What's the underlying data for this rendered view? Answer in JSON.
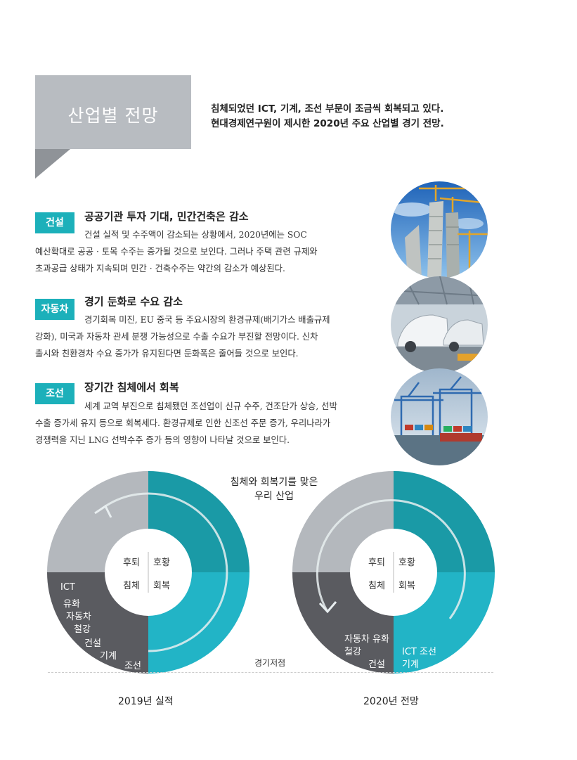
{
  "header": {
    "title": "산업별 전망",
    "intro_line1": "침체되었던 ICT, 기계, 조선 부문이 조금씩 회복되고 있다.",
    "intro_line2": "현대경제연구원이 제시한 2020년 주요 산업별 경기 전망."
  },
  "sections": [
    {
      "tag": "건설",
      "title": "공공기관 투자 기대, 민간건축은 감소",
      "lines": [
        "건설 실적 및 수주액이 감소되는 상황에서, 2020년에는 SOC",
        "예산확대로 공공 · 토목 수주는 증가될 것으로 보인다. 그러나 주택 관련 규제와",
        "초과공급 상태가 지속되며 민간 · 건축수주는 약간의 감소가 예상된다."
      ]
    },
    {
      "tag": "자동차",
      "title": "경기 둔화로 수요 감소",
      "lines": [
        "경기회복 미진, EU 중국 등 주요시장의 환경규제(배기가스 배출규제",
        "강화), 미국과 자동차 관세 분쟁 가능성으로 수출 수요가 부진할 전망이다. 신차",
        "출시와 친환경차 수요 증가가 유지된다면 둔화폭은 줄어들 것으로 보인다."
      ]
    },
    {
      "tag": "조선",
      "title": "장기간 침체에서 회복",
      "lines": [
        "세계 교역 부진으로 침체됐던 조선업이 신규 수주, 건조단가 상승, 선박",
        "수출 증가세 유지 등으로 회복세다. 환경규제로 인한 신조선 주문 증가, 우리나라가",
        "경쟁력을 지닌 LNG 선박수주 증가 등의 영향이 나타날 것으로 보인다."
      ]
    }
  ],
  "charts": {
    "center_title_line1": "침체와 회복기를 맞은",
    "center_title_line2": "우리 산업",
    "quadrants": {
      "tl": "후퇴",
      "tr": "호황",
      "bl": "침체",
      "br": "회복"
    },
    "trough_label": "경기저점",
    "chart2019": {
      "caption": "2019년 실적",
      "list": [
        "ICT",
        "유화",
        "자동차",
        "철강",
        "건설",
        "기계",
        "조선"
      ]
    },
    "chart2020": {
      "caption": "2020년 전망",
      "bl_line1": "자동차 유화",
      "bl_line2": "철강",
      "bl_line3": "건설",
      "br_line1": "ICT 조선",
      "br_line2": "기계"
    }
  },
  "colors": {
    "teal": "#1cb0ba",
    "grey_quadrant": "#b4b8bd",
    "dark_quadrant": "#5a5b60",
    "teal_top": "#1a9aa6",
    "teal_bottom": "#22b4c6"
  },
  "images": {
    "photo1": "construction-cranes-photo",
    "photo2": "car-factory-photo",
    "photo3": "container-port-photo"
  }
}
